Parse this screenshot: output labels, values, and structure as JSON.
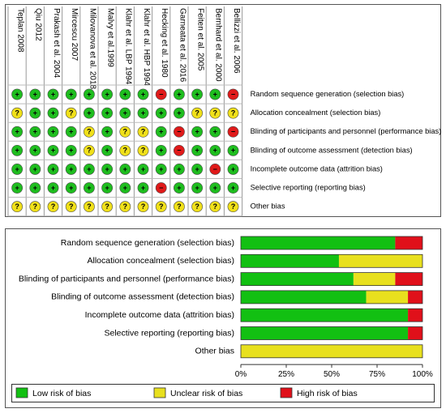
{
  "colors": {
    "low": "#1fbe1f",
    "unclear": "#f0e01a",
    "high": "#e01a1a",
    "bar_low": "#12c012",
    "bar_unclear": "#e8e01e",
    "bar_high": "#e0101a",
    "border": "#555555"
  },
  "symbols": {
    "low": "+",
    "unclear": "?",
    "high": "−"
  },
  "chart_data": [
    {
      "type": "table",
      "studies": [
        "Teplan 2008",
        "Qiu 2012",
        "Prakash et al. 2004",
        "Mircescu 2007",
        "Milovanova et al. 2018",
        "Malvy et al.1999",
        "Klahr et al. LBP 1994",
        "Klahr et al. HBP 1994",
        "Hecking et al. 1980",
        "Garneata et al. 2016",
        "Feiten et al. 2005",
        "Bernhard et al. 2000",
        "Bellizzi et al. 2006"
      ],
      "domains": [
        "Random sequence generation (selection bias)",
        "Allocation concealment (selection bias)",
        "Blinding of participants and personnel (performance bias)",
        "Blinding of outcome assessment (detection bias)",
        "Incomplete outcome data (attrition bias)",
        "Selective reporting (reporting bias)",
        "Other bias"
      ],
      "judgements": [
        [
          "low",
          "low",
          "low",
          "low",
          "low",
          "low",
          "low",
          "low",
          "high",
          "low",
          "low",
          "low",
          "high"
        ],
        [
          "unclear",
          "low",
          "low",
          "unclear",
          "low",
          "low",
          "low",
          "low",
          "low",
          "low",
          "unclear",
          "unclear",
          "unclear"
        ],
        [
          "low",
          "low",
          "low",
          "low",
          "unclear",
          "low",
          "unclear",
          "unclear",
          "low",
          "high",
          "low",
          "low",
          "high"
        ],
        [
          "low",
          "low",
          "low",
          "low",
          "unclear",
          "low",
          "unclear",
          "unclear",
          "low",
          "high",
          "low",
          "low",
          "low"
        ],
        [
          "low",
          "low",
          "low",
          "low",
          "low",
          "low",
          "low",
          "low",
          "low",
          "low",
          "low",
          "high",
          "low"
        ],
        [
          "low",
          "low",
          "low",
          "low",
          "low",
          "low",
          "low",
          "low",
          "high",
          "low",
          "low",
          "low",
          "low"
        ],
        [
          "unclear",
          "unclear",
          "unclear",
          "unclear",
          "unclear",
          "unclear",
          "unclear",
          "unclear",
          "unclear",
          "unclear",
          "unclear",
          "unclear",
          "unclear"
        ]
      ]
    },
    {
      "type": "bar",
      "stacked": true,
      "orientation": "horizontal",
      "categories": [
        "Random sequence generation (selection bias)",
        "Allocation concealment (selection bias)",
        "Blinding of participants and personnel (performance bias)",
        "Blinding of outcome assessment (detection bias)",
        "Incomplete outcome data (attrition bias)",
        "Selective reporting (reporting bias)",
        "Other bias"
      ],
      "series": [
        {
          "name": "Low risk of bias",
          "key": "low",
          "values": [
            85,
            54,
            62,
            69,
            92,
            92,
            0
          ]
        },
        {
          "name": "Unclear risk of bias",
          "key": "unclear",
          "values": [
            0,
            46,
            23,
            23,
            0,
            0,
            100
          ]
        },
        {
          "name": "High risk of bias",
          "key": "high",
          "values": [
            15,
            0,
            15,
            8,
            8,
            8,
            0
          ]
        }
      ],
      "xlim": [
        0,
        100
      ],
      "xticks": [
        "0%",
        "25%",
        "50%",
        "75%",
        "100%"
      ],
      "legend_position": "bottom"
    }
  ]
}
